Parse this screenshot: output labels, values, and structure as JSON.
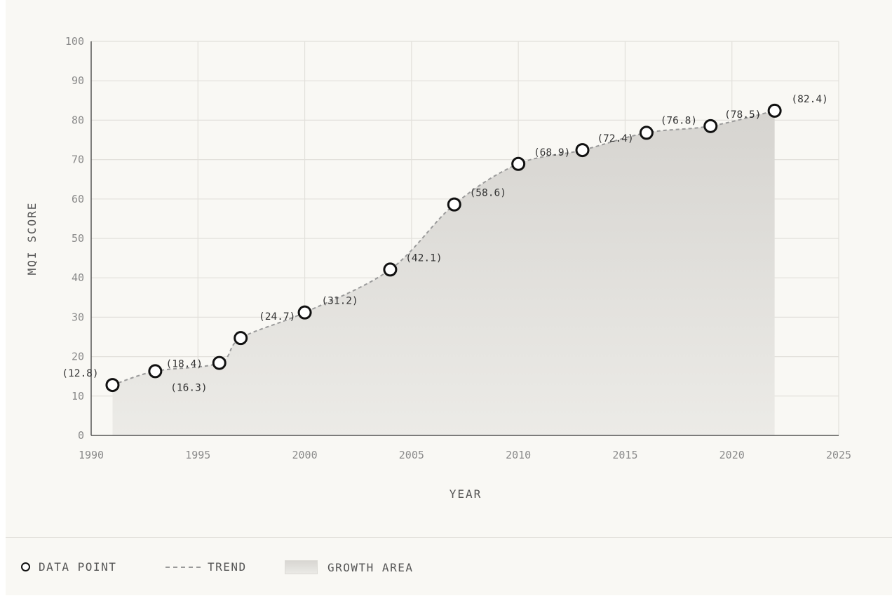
{
  "chart_data": {
    "type": "line",
    "title": "",
    "xlabel": "YEAR",
    "ylabel": "MQI SCORE",
    "xlim": [
      1990,
      2025
    ],
    "ylim": [
      0,
      100
    ],
    "x_ticks": [
      "1990",
      "1995",
      "2000",
      "2005",
      "2010",
      "2015",
      "2020",
      "2025"
    ],
    "y_ticks": [
      "0",
      "10",
      "20",
      "30",
      "40",
      "50",
      "60",
      "70",
      "80",
      "90",
      "100"
    ],
    "grid": true,
    "series": [
      {
        "points": [
          {
            "x": 1991,
            "y": 12.8,
            "label": "(12.8)"
          },
          {
            "x": 1993,
            "y": 16.3,
            "label": "(16.3)"
          },
          {
            "x": 1996,
            "y": 18.4,
            "label": "(18.4)"
          },
          {
            "x": 1997,
            "y": 24.7,
            "label": "(24.7)"
          },
          {
            "x": 2000,
            "y": 31.2,
            "label": "(31.2)"
          },
          {
            "x": 2004,
            "y": 42.1,
            "label": "(42.1)"
          },
          {
            "x": 2007,
            "y": 58.6,
            "label": "(58.6)"
          },
          {
            "x": 2010,
            "y": 68.9,
            "label": "(68.9)"
          },
          {
            "x": 2013,
            "y": 72.4,
            "label": "(72.4)"
          },
          {
            "x": 2016,
            "y": 76.8,
            "label": "(76.8)"
          },
          {
            "x": 2019,
            "y": 78.5,
            "label": "(78.5)"
          },
          {
            "x": 2022,
            "y": 82.4,
            "label": "(82.4)"
          }
        ]
      }
    ],
    "legend": {
      "placement": "bottom-left",
      "items": [
        {
          "key": "point",
          "label": "DATA POINT"
        },
        {
          "key": "trend",
          "label": "TREND"
        },
        {
          "key": "area",
          "label": "GROWTH AREA"
        }
      ]
    },
    "colors": {
      "marker_stroke": "#111111",
      "marker_fill": "#ffffff",
      "trend": "#9a9a9a",
      "area_top": "#d6d4d0",
      "area_bottom": "#ecebe7",
      "grid": "#e2e0db",
      "axis": "#555555"
    }
  }
}
